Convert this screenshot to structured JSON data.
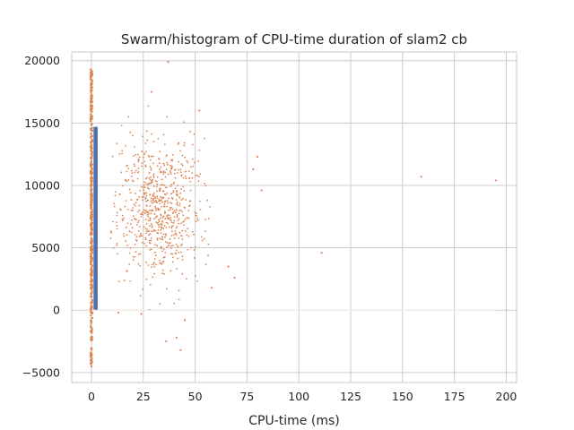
{
  "chart_data": {
    "type": "scatter",
    "title": "Swarm/histogram of CPU-time duration of slam2 cb",
    "xlabel": "CPU-time (ms)",
    "ylabel": "",
    "xlim": [
      -9.5,
      205
    ],
    "ylim": [
      -5800,
      20700
    ],
    "xticks": [
      0,
      25,
      50,
      75,
      100,
      125,
      150,
      175,
      200
    ],
    "yticks": [
      -5000,
      0,
      5000,
      10000,
      15000,
      20000
    ],
    "grid": true,
    "legend": "none",
    "colors": {
      "histogram": "#4c72b0",
      "points": "#dd8452",
      "grid": "#cccccc",
      "spine": "#cccccc"
    },
    "histogram_bars": [
      {
        "x_start": 1.0,
        "x_end": 3.0,
        "count": 14700
      }
    ],
    "near_zero_band": {
      "x": 0,
      "y_min": -4500,
      "y_max": 19300
    },
    "cluster": {
      "x_center": 33,
      "x_spread": 10,
      "y_center": 8200,
      "y_spread": 2800,
      "count": 700
    },
    "outlier_points": [
      {
        "x": 37,
        "y": 19900
      },
      {
        "x": 29,
        "y": 17500
      },
      {
        "x": 52,
        "y": 16000
      },
      {
        "x": 80,
        "y": 12300
      },
      {
        "x": 78,
        "y": 11300
      },
      {
        "x": 82,
        "y": 9600
      },
      {
        "x": 159,
        "y": 10700
      },
      {
        "x": 195,
        "y": 10400
      },
      {
        "x": 111,
        "y": 4600
      },
      {
        "x": 69,
        "y": 2600
      },
      {
        "x": 66,
        "y": 3500
      },
      {
        "x": 58,
        "y": 1800
      },
      {
        "x": 13,
        "y": -200
      },
      {
        "x": 24,
        "y": -300
      },
      {
        "x": 45,
        "y": -800
      },
      {
        "x": 41,
        "y": -2200
      },
      {
        "x": 36,
        "y": -2500
      },
      {
        "x": 43,
        "y": -3200
      }
    ]
  }
}
